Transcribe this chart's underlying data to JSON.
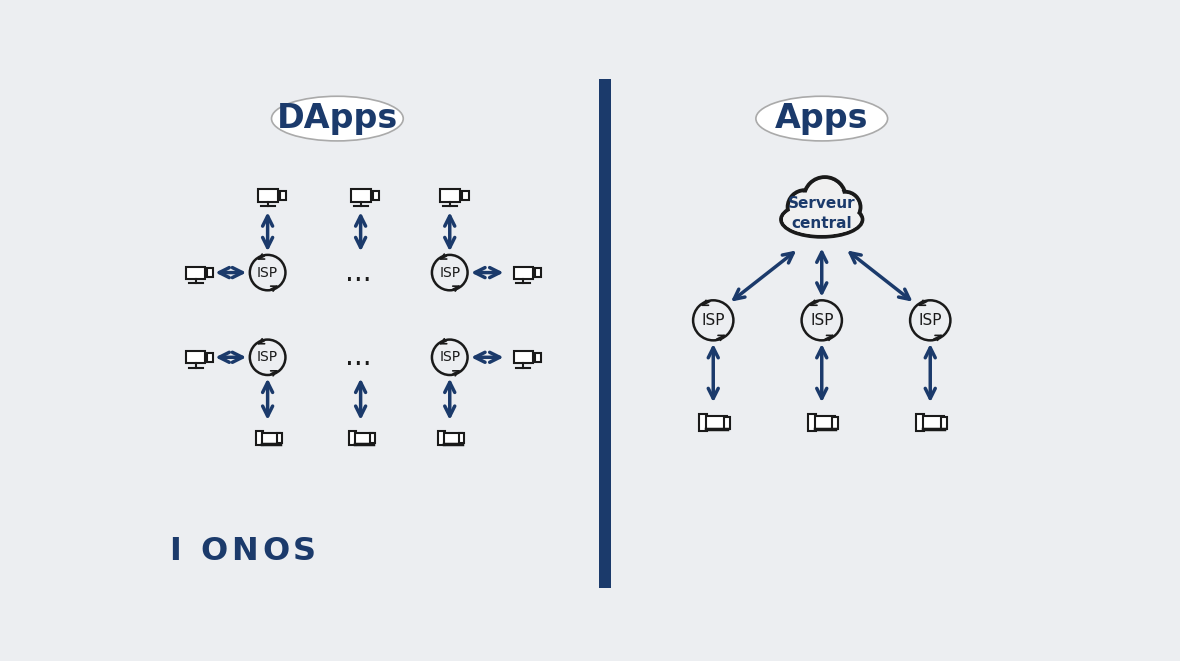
{
  "bg_color": "#ECEEF1",
  "divider_color": "#1B3A6B",
  "arrow_color": "#1B3A6B",
  "isp_circle_color": "#1a1a1a",
  "cloud_color": "#1a1a1a",
  "cloud_fill": "#f0f0f0",
  "device_color": "#1a1a1a",
  "title_color": "#1B3A6B",
  "ellipse_color": "#aaaaaa",
  "ellipse_fill": "white",
  "label_dapps": "DApps",
  "label_apps": "Apps",
  "label_isp": "ISP",
  "label_server": "Serveur\ncentral",
  "label_dots": "...",
  "ionos_color": "#1B3A6B"
}
